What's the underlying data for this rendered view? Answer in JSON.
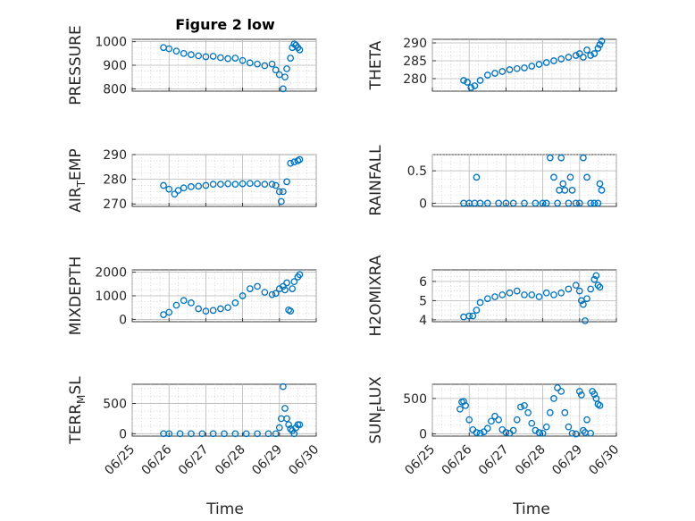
{
  "figure": {
    "title": "Figure 2 low",
    "xlabel": "Time",
    "marker_color": "#0072bd",
    "xtick_labels": [
      "06/25",
      "06/26",
      "06/27",
      "06/28",
      "06/29",
      "06/30"
    ]
  },
  "chart_data": [
    {
      "type": "scatter",
      "title": "Figure 2 low",
      "ylabel": "PRESSURE",
      "xlabel": "",
      "xlim": [
        0,
        5
      ],
      "ylim": [
        790,
        1010
      ],
      "yticks": [
        800,
        900,
        1000
      ],
      "grid": true,
      "x": [
        0.85,
        1.0,
        1.2,
        1.4,
        1.6,
        1.8,
        2.0,
        2.2,
        2.4,
        2.6,
        2.8,
        3.0,
        3.2,
        3.4,
        3.6,
        3.8,
        3.9,
        4.0,
        4.1,
        4.15,
        4.2,
        4.3,
        4.35,
        4.4,
        4.45,
        4.5,
        4.55
      ],
      "y": [
        975,
        970,
        960,
        950,
        945,
        940,
        936,
        938,
        932,
        928,
        930,
        920,
        910,
        905,
        898,
        905,
        880,
        860,
        800,
        850,
        885,
        930,
        975,
        990,
        985,
        975,
        965
      ]
    },
    {
      "type": "scatter",
      "ylabel": "THETA",
      "xlabel": "",
      "xlim": [
        0,
        5
      ],
      "ylim": [
        276.5,
        291
      ],
      "yticks": [
        280,
        285,
        290
      ],
      "grid": true,
      "x": [
        0.85,
        0.95,
        1.05,
        1.15,
        1.3,
        1.5,
        1.7,
        1.9,
        2.1,
        2.3,
        2.5,
        2.7,
        2.9,
        3.1,
        3.3,
        3.5,
        3.7,
        3.9,
        4.0,
        4.1,
        4.2,
        4.3,
        4.4,
        4.5,
        4.55,
        4.6
      ],
      "y": [
        279.5,
        279,
        277.5,
        278,
        279.5,
        281,
        281.5,
        282,
        282.5,
        282.8,
        283,
        283.5,
        284,
        284.5,
        285,
        285.5,
        286,
        286.5,
        287,
        286,
        288,
        286.5,
        287,
        288.5,
        289.5,
        290.5
      ]
    },
    {
      "type": "scatter",
      "ylabel": "AIR_TEMP",
      "xlabel": "",
      "xlim": [
        0,
        5
      ],
      "ylim": [
        269,
        290
      ],
      "yticks": [
        270,
        280,
        290
      ],
      "grid": true,
      "x": [
        0.85,
        1.0,
        1.15,
        1.25,
        1.4,
        1.6,
        1.8,
        2.0,
        2.2,
        2.4,
        2.6,
        2.8,
        3.0,
        3.2,
        3.4,
        3.6,
        3.8,
        3.9,
        4.0,
        4.05,
        4.1,
        4.2,
        4.3,
        4.4,
        4.5,
        4.55
      ],
      "y": [
        277.5,
        276,
        274,
        275.5,
        276.5,
        277,
        277.2,
        277.5,
        278,
        278,
        278.2,
        278,
        278.2,
        278.3,
        278.2,
        278,
        278,
        277.5,
        275,
        271,
        275,
        279,
        286.5,
        287,
        287.5,
        288
      ]
    },
    {
      "type": "scatter",
      "ylabel": "RAINFALL",
      "xlabel": "",
      "xlim": [
        0,
        5
      ],
      "ylim": [
        -0.05,
        0.75
      ],
      "yticks": [
        0,
        0.5
      ],
      "grid": true,
      "x": [
        0.85,
        1.0,
        1.15,
        1.2,
        1.3,
        1.5,
        1.8,
        2.0,
        2.2,
        2.5,
        2.8,
        3.0,
        3.1,
        3.2,
        3.3,
        3.4,
        3.45,
        3.5,
        3.55,
        3.6,
        3.7,
        3.75,
        3.8,
        3.9,
        4.0,
        4.1,
        4.2,
        4.3,
        4.4,
        4.5,
        4.55,
        4.6
      ],
      "y": [
        0,
        0,
        0,
        0.4,
        0,
        0,
        0,
        0,
        0,
        0,
        0,
        0,
        0,
        0.7,
        0.4,
        0,
        0.2,
        0.7,
        0.3,
        0.2,
        0,
        0.4,
        0.2,
        0,
        0,
        0.7,
        0.4,
        0,
        0,
        0,
        0.3,
        0.2
      ]
    },
    {
      "type": "scatter",
      "ylabel": "MIXDEPTH",
      "xlabel": "",
      "xlim": [
        0,
        5
      ],
      "ylim": [
        -100,
        2100
      ],
      "yticks": [
        0,
        1000,
        2000
      ],
      "grid": true,
      "x": [
        0.85,
        1.0,
        1.2,
        1.4,
        1.6,
        1.8,
        2.0,
        2.2,
        2.4,
        2.6,
        2.8,
        3.0,
        3.2,
        3.4,
        3.6,
        3.8,
        3.9,
        4.0,
        4.1,
        4.15,
        4.2,
        4.25,
        4.3,
        4.35,
        4.4,
        4.5,
        4.55
      ],
      "y": [
        200,
        300,
        600,
        800,
        700,
        450,
        350,
        380,
        450,
        500,
        700,
        1000,
        1300,
        1400,
        1150,
        1050,
        1100,
        1300,
        1400,
        1250,
        1550,
        400,
        350,
        1300,
        1600,
        1800,
        1900
      ]
    },
    {
      "type": "scatter",
      "ylabel": "H2OMIXRA",
      "xlabel": "",
      "xlim": [
        0,
        5
      ],
      "ylim": [
        3.9,
        6.6
      ],
      "yticks": [
        4,
        5,
        6
      ],
      "grid": true,
      "x": [
        0.85,
        1.0,
        1.1,
        1.2,
        1.3,
        1.5,
        1.7,
        1.9,
        2.1,
        2.3,
        2.5,
        2.7,
        2.9,
        3.1,
        3.3,
        3.5,
        3.7,
        3.9,
        4.0,
        4.05,
        4.1,
        4.15,
        4.2,
        4.3,
        4.4,
        4.45,
        4.5,
        4.55
      ],
      "y": [
        4.15,
        4.2,
        4.2,
        4.5,
        4.9,
        5.1,
        5.2,
        5.3,
        5.4,
        5.5,
        5.3,
        5.3,
        5.2,
        5.4,
        5.3,
        5.4,
        5.6,
        5.8,
        5.5,
        5,
        4.8,
        3.95,
        5.1,
        5.6,
        6.1,
        6.3,
        5.8,
        5.7
      ]
    },
    {
      "type": "scatter",
      "ylabel": "TERR_MSL",
      "xlabel": "Time",
      "xlim": [
        0,
        5
      ],
      "ylim": [
        -40,
        820
      ],
      "yticks": [
        0,
        500
      ],
      "xtick_labels": [
        "06/25",
        "06/26",
        "06/27",
        "06/28",
        "06/29",
        "06/30"
      ],
      "grid": true,
      "x": [
        0.85,
        1.0,
        1.3,
        1.6,
        1.9,
        2.2,
        2.5,
        2.8,
        3.1,
        3.4,
        3.7,
        3.9,
        4.0,
        4.05,
        4.1,
        4.15,
        4.2,
        4.25,
        4.3,
        4.35,
        4.4,
        4.45,
        4.5,
        4.55
      ],
      "y": [
        0,
        0,
        0,
        0,
        0,
        0,
        0,
        0,
        0,
        0,
        0,
        0,
        100,
        250,
        780,
        420,
        250,
        150,
        80,
        50,
        0,
        100,
        150,
        150
      ]
    },
    {
      "type": "scatter",
      "ylabel": "SUN_FLUX",
      "xlabel": "Time",
      "xlim": [
        0,
        5
      ],
      "ylim": [
        -30,
        700
      ],
      "yticks": [
        0,
        500
      ],
      "xtick_labels": [
        "06/25",
        "06/26",
        "06/27",
        "06/28",
        "06/29",
        "06/30"
      ],
      "grid": true,
      "x": [
        0.75,
        0.8,
        0.85,
        0.9,
        1.0,
        1.1,
        1.2,
        1.3,
        1.4,
        1.5,
        1.6,
        1.7,
        1.8,
        1.9,
        2.0,
        2.1,
        2.2,
        2.3,
        2.4,
        2.5,
        2.6,
        2.7,
        2.8,
        2.9,
        3.0,
        3.1,
        3.2,
        3.3,
        3.4,
        3.5,
        3.6,
        3.7,
        3.8,
        3.9,
        4.0,
        4.05,
        4.1,
        4.15,
        4.2,
        4.3,
        4.35,
        4.4,
        4.45,
        4.5,
        4.55
      ],
      "y": [
        350,
        450,
        460,
        400,
        200,
        60,
        20,
        10,
        30,
        80,
        180,
        250,
        200,
        60,
        20,
        10,
        50,
        200,
        380,
        400,
        300,
        150,
        50,
        20,
        10,
        100,
        300,
        500,
        650,
        600,
        300,
        100,
        10,
        0,
        600,
        550,
        50,
        20,
        200,
        10,
        600,
        560,
        500,
        420,
        400
      ]
    }
  ]
}
